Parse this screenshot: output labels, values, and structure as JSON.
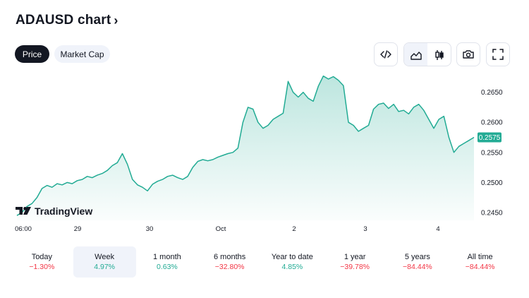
{
  "header": {
    "title": "ADAUSD chart",
    "chevron": "›"
  },
  "segments": {
    "price": "Price",
    "market_cap": "Market Cap"
  },
  "toolbar": {
    "embed_icon": "code-icon",
    "area_icon": "area-chart-icon",
    "candles_icon": "candlestick-icon",
    "snapshot_icon": "camera-icon",
    "fullscreen_icon": "fullscreen-icon"
  },
  "watermark": {
    "brand": "TradingView"
  },
  "chart_data": {
    "type": "area",
    "symbol": "ADAUSD",
    "x_ticks": [
      "06:00",
      "29",
      "30",
      "Oct",
      "2",
      "3",
      "4"
    ],
    "y_ticks": [
      "0.2650",
      "0.2600",
      "0.2550",
      "0.2500",
      "0.2450"
    ],
    "ylim": [
      0.2437,
      0.2686
    ],
    "last_price": "0.2575",
    "colors": {
      "line": "#22ab94",
      "badge": "#22ab94"
    },
    "series": [
      {
        "values": [
          0.2445,
          0.245,
          0.246,
          0.2465,
          0.2475,
          0.249,
          0.2495,
          0.2492,
          0.2498,
          0.2496,
          0.25,
          0.2498,
          0.2503,
          0.2505,
          0.251,
          0.2508,
          0.2512,
          0.2515,
          0.252,
          0.2528,
          0.2533,
          0.2548,
          0.253,
          0.2505,
          0.2496,
          0.2492,
          0.2486,
          0.2497,
          0.2502,
          0.2505,
          0.251,
          0.2512,
          0.2508,
          0.2505,
          0.251,
          0.2525,
          0.2535,
          0.2538,
          0.2536,
          0.2538,
          0.2542,
          0.2545,
          0.2548,
          0.255,
          0.2557,
          0.26,
          0.2625,
          0.2622,
          0.26,
          0.259,
          0.2595,
          0.2605,
          0.261,
          0.2615,
          0.2668,
          0.265,
          0.2642,
          0.265,
          0.264,
          0.2635,
          0.266,
          0.2677,
          0.2672,
          0.2676,
          0.267,
          0.2661,
          0.26,
          0.2595,
          0.2585,
          0.259,
          0.2595,
          0.2622,
          0.263,
          0.2632,
          0.2623,
          0.263,
          0.2618,
          0.262,
          0.2614,
          0.2625,
          0.263,
          0.262,
          0.2605,
          0.259,
          0.2605,
          0.261,
          0.2575,
          0.255,
          0.256,
          0.2565,
          0.257,
          0.2575
        ]
      }
    ]
  },
  "periods": [
    {
      "label": "Today",
      "change": "−1.30%",
      "dir": "neg"
    },
    {
      "label": "Week",
      "change": "4.97%",
      "dir": "pos"
    },
    {
      "label": "1 month",
      "change": "0.63%",
      "dir": "pos"
    },
    {
      "label": "6 months",
      "change": "−32.80%",
      "dir": "neg"
    },
    {
      "label": "Year to date",
      "change": "4.85%",
      "dir": "pos"
    },
    {
      "label": "1 year",
      "change": "−39.78%",
      "dir": "neg"
    },
    {
      "label": "5 years",
      "change": "−84.44%",
      "dir": "neg"
    },
    {
      "label": "All time",
      "change": "−84.44%",
      "dir": "neg"
    }
  ]
}
